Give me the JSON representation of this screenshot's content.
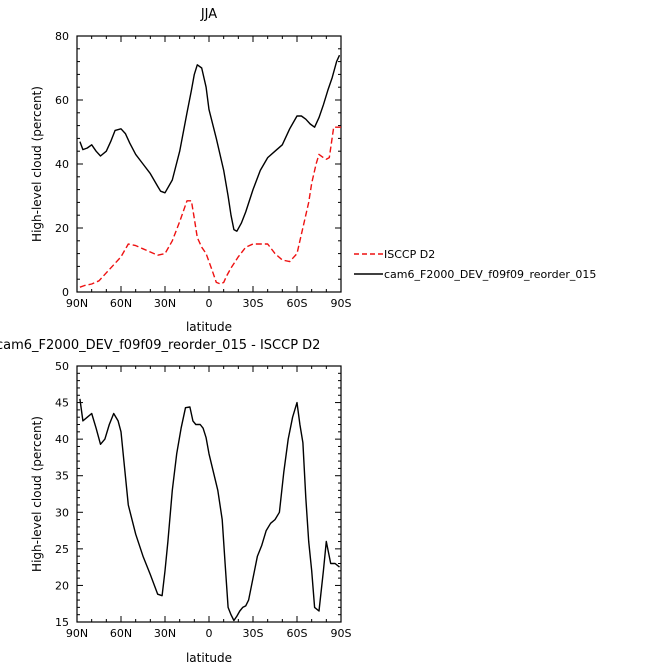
{
  "chart_data": [
    {
      "type": "line",
      "title": "JJA",
      "xlabel": "latitude",
      "ylabel": "High-level cloud (percent)",
      "xlim": [
        -90,
        90
      ],
      "ylim": [
        0,
        80
      ],
      "xticks": [
        -90,
        -60,
        -30,
        0,
        30,
        60,
        90
      ],
      "xtick_labels": [
        "90N",
        "60N",
        "30N",
        "0",
        "30S",
        "60S",
        "90S"
      ],
      "yticks": [
        0,
        20,
        40,
        60,
        80
      ],
      "ytick_labels": [
        "0",
        "20",
        "40",
        "60",
        "80"
      ],
      "legend_position": "right",
      "grid": false,
      "series": [
        {
          "name": "ISCCP D2",
          "color": "#ee1111",
          "dash": "dashed",
          "x": [
            -88,
            -85,
            -80,
            -75,
            -70,
            -65,
            -60,
            -55,
            -50,
            -45,
            -40,
            -35,
            -30,
            -25,
            -20,
            -15,
            -12,
            -10,
            -8,
            -5,
            -2,
            0,
            2,
            5,
            8,
            10,
            12,
            15,
            20,
            25,
            30,
            35,
            40,
            45,
            50,
            55,
            60,
            62,
            65,
            68,
            70,
            73,
            75,
            78,
            80,
            82,
            85,
            87,
            90
          ],
          "y": [
            1.5,
            2,
            2.5,
            3.5,
            6,
            8.5,
            11,
            15,
            14.5,
            13.5,
            12.5,
            11.5,
            12,
            16,
            22,
            28.5,
            28.5,
            23,
            17,
            14,
            12,
            9.5,
            7,
            3,
            2.5,
            3,
            5,
            7.5,
            11,
            14,
            15,
            15,
            15,
            12,
            10,
            9.5,
            12,
            16,
            22,
            28,
            34,
            40,
            43,
            42,
            41.5,
            42,
            51.5,
            51.5,
            51.5
          ]
        },
        {
          "name": "cam6_F2000_DEV_f09f09_reorder_015",
          "color": "#000000",
          "dash": "solid",
          "x": [
            -88,
            -86,
            -83,
            -80,
            -77,
            -74,
            -70,
            -67,
            -64,
            -60,
            -57,
            -54,
            -50,
            -45,
            -40,
            -35,
            -33,
            -30,
            -25,
            -20,
            -15,
            -12,
            -10,
            -8,
            -5,
            -2,
            0,
            5,
            10,
            13,
            15,
            17,
            19,
            22,
            25,
            30,
            35,
            40,
            45,
            50,
            55,
            60,
            63,
            66,
            69,
            72,
            75,
            78,
            81,
            84,
            87,
            89
          ],
          "y": [
            47,
            44.5,
            45,
            46,
            44,
            42.5,
            44,
            47,
            50.5,
            51,
            49.5,
            46.5,
            43,
            40,
            37,
            33,
            31.5,
            31,
            35,
            44,
            56,
            63,
            68,
            71,
            70,
            64,
            57,
            48,
            38,
            30,
            24,
            19.5,
            19,
            21.5,
            25,
            32,
            38,
            42,
            44,
            46,
            51,
            55,
            55,
            54,
            52.5,
            51.5,
            54.5,
            58.5,
            63,
            67,
            72,
            74
          ]
        }
      ]
    },
    {
      "type": "line",
      "title": "cam6_F2000_DEV_f09f09_reorder_015 - ISCCP D2",
      "xlabel": "latitude",
      "ylabel": "High-level cloud (percent)",
      "xlim": [
        -90,
        90
      ],
      "ylim": [
        15,
        50
      ],
      "xticks": [
        -90,
        -60,
        -30,
        0,
        30,
        60,
        90
      ],
      "xtick_labels": [
        "90N",
        "60N",
        "30N",
        "0",
        "30S",
        "60S",
        "90S"
      ],
      "yticks": [
        15,
        20,
        25,
        30,
        35,
        40,
        45,
        50
      ],
      "ytick_labels": [
        "15",
        "20",
        "25",
        "30",
        "35",
        "40",
        "45",
        "50"
      ],
      "grid": false,
      "series": [
        {
          "color": "#000000",
          "dash": "solid",
          "x": [
            -88,
            -86,
            -83,
            -80,
            -77,
            -74,
            -71,
            -68,
            -65,
            -62,
            -60,
            -58,
            -55,
            -50,
            -45,
            -40,
            -35,
            -32,
            -30,
            -28,
            -25,
            -22,
            -19,
            -16,
            -13,
            -11,
            -9,
            -6,
            -4,
            -2,
            0,
            3,
            6,
            9,
            11,
            13,
            15,
            17,
            19,
            21,
            23,
            25,
            27,
            30,
            33,
            36,
            39,
            42,
            45,
            48,
            51,
            54,
            57,
            60,
            62,
            64,
            66,
            68,
            70,
            72,
            75,
            78,
            80,
            83,
            86,
            89
          ],
          "y": [
            45.5,
            42.5,
            43,
            43.5,
            41.5,
            39.3,
            40,
            42,
            43.5,
            42.5,
            41,
            37,
            31,
            27,
            24,
            21.5,
            18.8,
            18.6,
            22,
            26,
            33,
            38,
            41.5,
            44.3,
            44.4,
            42.5,
            42,
            42,
            41.5,
            40.2,
            38,
            35.5,
            33,
            29,
            23,
            17,
            16,
            15.2,
            15.8,
            16.5,
            17,
            17.2,
            18,
            21,
            24,
            25.5,
            27.5,
            28.5,
            29,
            30,
            35.5,
            40,
            43,
            45,
            42,
            39.5,
            32,
            26,
            22,
            17,
            16.5,
            22,
            26,
            23,
            23,
            22.5
          ]
        }
      ]
    }
  ]
}
